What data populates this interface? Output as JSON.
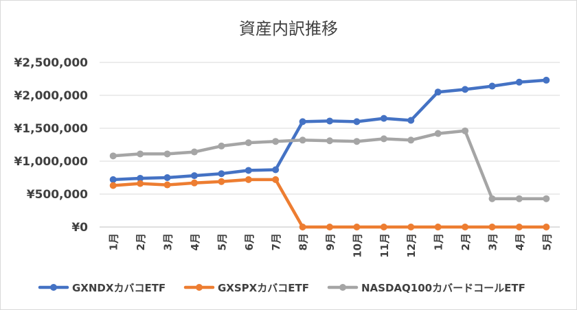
{
  "chart_data": {
    "type": "line",
    "title": "資産内訳推移",
    "categories": [
      "1月",
      "2月",
      "3月",
      "4月",
      "5月",
      "6月",
      "7月",
      "8月",
      "9月",
      "10月",
      "11月",
      "12月",
      "1月",
      "2月",
      "3月",
      "4月",
      "5月"
    ],
    "y_ticks": [
      "¥0",
      "¥500,000",
      "¥1,000,000",
      "¥1,500,000",
      "¥2,000,000",
      "¥2,500,000"
    ],
    "ylim": [
      0,
      2500000
    ],
    "grid": true,
    "legend_position": "bottom",
    "series": [
      {
        "name": "GXNDXカバコETF",
        "color": "#4472c4",
        "values": [
          720000,
          740000,
          750000,
          780000,
          810000,
          860000,
          870000,
          1600000,
          1610000,
          1600000,
          1650000,
          1620000,
          2050000,
          2090000,
          2140000,
          2200000,
          2230000
        ]
      },
      {
        "name": "GXSPXカバコETF",
        "color": "#ed7d31",
        "values": [
          630000,
          660000,
          640000,
          670000,
          690000,
          720000,
          720000,
          0,
          0,
          0,
          0,
          0,
          0,
          0,
          0,
          0,
          0
        ]
      },
      {
        "name": "NASDAQ100カバードコールETF",
        "color": "#a5a5a5",
        "values": [
          1080000,
          1110000,
          1110000,
          1140000,
          1230000,
          1280000,
          1300000,
          1320000,
          1310000,
          1300000,
          1340000,
          1320000,
          1420000,
          1460000,
          430000,
          430000,
          430000
        ]
      }
    ]
  }
}
